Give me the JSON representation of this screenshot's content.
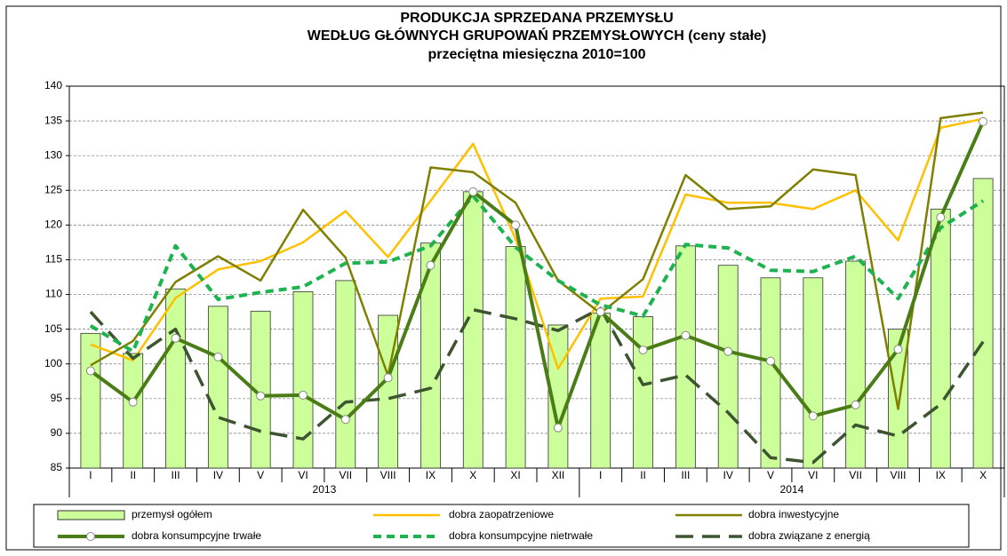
{
  "chart_data": {
    "type": "bar-line",
    "title": [
      "PRODUKCJA SPRZEDANA PRZEMYSŁU",
      "WEDŁUG GŁÓWNYCH GRUPOWAŃ PRZEMYSŁOWYCH (ceny stałe)",
      "przeciętna miesięczna 2010=100"
    ],
    "groups": [
      {
        "name": "2013",
        "categories": [
          "I",
          "II",
          "III",
          "IV",
          "V",
          "VI",
          "VII",
          "VIII",
          "IX",
          "X",
          "XI",
          "XII"
        ]
      },
      {
        "name": "2014",
        "categories": [
          "I",
          "II",
          "III",
          "IV",
          "V",
          "VI",
          "VII",
          "VIII",
          "IX",
          "X"
        ]
      }
    ],
    "ylim": [
      85,
      140
    ],
    "yticks": [
      85,
      90,
      95,
      100,
      105,
      110,
      115,
      120,
      125,
      130,
      135,
      140
    ],
    "grid": true,
    "legend": "bottom",
    "series": [
      {
        "name": "przemysł ogółem",
        "kind": "bar",
        "color": "#ccff99",
        "values": [
          104.4,
          101.5,
          110.8,
          108.3,
          107.6,
          110.4,
          112,
          107,
          117.4,
          124.8,
          116.9,
          105.6,
          107.3,
          106.8,
          117,
          114.2,
          112.4,
          112.4,
          114.8,
          105,
          122.3,
          126.7
        ]
      },
      {
        "name": "dobra zaopatrzeniowe",
        "kind": "line",
        "color": "#ffc000",
        "values": [
          102.8,
          100.5,
          109.5,
          113.6,
          114.8,
          117.5,
          122,
          115.4,
          123.5,
          131.7,
          118,
          99.3,
          109.4,
          109.7,
          124.4,
          123.2,
          123.2,
          122.3,
          125,
          117.8,
          134,
          135.3
        ]
      },
      {
        "name": "dobra inwestycyjne",
        "kind": "line",
        "color": "#808000",
        "values": [
          99.8,
          103.3,
          111.8,
          115.5,
          112,
          122.2,
          115.3,
          98.3,
          128.3,
          127.6,
          123.2,
          112,
          107.3,
          112.2,
          127.2,
          122.3,
          122.7,
          128,
          127.2,
          93.5,
          135.4,
          136.2
        ]
      },
      {
        "name": "dobra konsumpcyjne trwałe",
        "kind": "marker-line",
        "color": "#4a7d16",
        "values": [
          99,
          94.5,
          103.7,
          101,
          95.4,
          95.5,
          92,
          98,
          114.2,
          124.8,
          120,
          90.8,
          107.5,
          102,
          104.1,
          101.8,
          100.4,
          92.5,
          94.1,
          102.1,
          121.1,
          134.9
        ]
      },
      {
        "name": "dobra konsumpcyjne nietrwałe",
        "kind": "dashed-line",
        "color": "#1db34f",
        "values": [
          105.5,
          101.8,
          117,
          109.3,
          110.3,
          111.1,
          114.5,
          114.7,
          117,
          124.2,
          116.8,
          112,
          108.5,
          106.9,
          117.2,
          116.7,
          113.5,
          113.3,
          115.5,
          109.4,
          119.6,
          123.5
        ]
      },
      {
        "name": "dobra związane z energią",
        "kind": "long-dash-line",
        "color": "#3c5530",
        "values": [
          107.5,
          100.8,
          105,
          92.3,
          90.3,
          89.2,
          94.5,
          95,
          96.5,
          107.8,
          106.5,
          104.8,
          108,
          97,
          98.4,
          93,
          86.5,
          85.8,
          91.2,
          89.6,
          94.2,
          103.2
        ]
      }
    ]
  }
}
